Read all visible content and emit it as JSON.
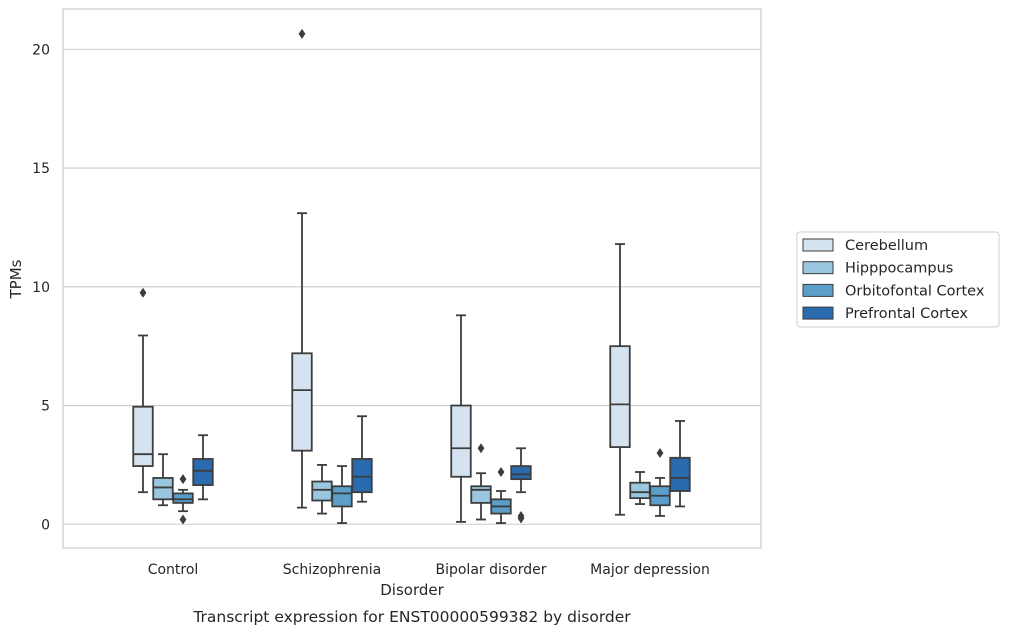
{
  "chart_data": {
    "type": "box",
    "xlabel": "Disorder",
    "ylabel": "TPMs",
    "caption": "Transcript expression for ENST00000599382 by disorder",
    "ylim": [
      -1,
      21.7
    ],
    "yticks": [
      0,
      5,
      10,
      15,
      20
    ],
    "grid": "horizontal",
    "legend_position": "right",
    "categories": [
      "Control",
      "Schizophrenia",
      "Bipolar disorder",
      "Major depression"
    ],
    "series": [
      {
        "name": "Cerebellum",
        "color": "#d5e3f0",
        "boxes": [
          {
            "whislo": 1.35,
            "q1": 2.45,
            "med": 2.95,
            "q3": 4.95,
            "whishi": 7.95,
            "fliers": [
              9.75
            ]
          },
          {
            "whislo": 0.7,
            "q1": 3.1,
            "med": 5.65,
            "q3": 7.2,
            "whishi": 13.1,
            "fliers": [
              20.65
            ]
          },
          {
            "whislo": 0.1,
            "q1": 2.0,
            "med": 3.2,
            "q3": 5.0,
            "whishi": 8.8,
            "fliers": []
          },
          {
            "whislo": 0.4,
            "q1": 3.25,
            "med": 5.05,
            "q3": 7.5,
            "whishi": 11.8,
            "fliers": []
          }
        ]
      },
      {
        "name": "Hipppocampus",
        "color": "#9ac6e0",
        "boxes": [
          {
            "whislo": 0.8,
            "q1": 1.05,
            "med": 1.55,
            "q3": 1.95,
            "whishi": 2.95,
            "fliers": []
          },
          {
            "whislo": 0.45,
            "q1": 1.0,
            "med": 1.45,
            "q3": 1.8,
            "whishi": 2.5,
            "fliers": []
          },
          {
            "whislo": 0.2,
            "q1": 0.9,
            "med": 1.45,
            "q3": 1.6,
            "whishi": 2.15,
            "fliers": [
              3.2
            ]
          },
          {
            "whislo": 0.85,
            "q1": 1.1,
            "med": 1.35,
            "q3": 1.75,
            "whishi": 2.2,
            "fliers": []
          }
        ]
      },
      {
        "name": "Orbitofontal Cortex",
        "color": "#5a9ec9",
        "boxes": [
          {
            "whislo": 0.55,
            "q1": 0.9,
            "med": 1.05,
            "q3": 1.3,
            "whishi": 1.45,
            "fliers": [
              1.9,
              0.2
            ]
          },
          {
            "whislo": 0.05,
            "q1": 0.75,
            "med": 1.3,
            "q3": 1.6,
            "whishi": 2.45,
            "fliers": []
          },
          {
            "whislo": 0.05,
            "q1": 0.45,
            "med": 0.75,
            "q3": 1.05,
            "whishi": 1.4,
            "fliers": [
              2.2
            ]
          },
          {
            "whislo": 0.35,
            "q1": 0.8,
            "med": 1.2,
            "q3": 1.6,
            "whishi": 1.95,
            "fliers": [
              3.0
            ]
          }
        ]
      },
      {
        "name": "Prefrontal Cortex",
        "color": "#2a6aae",
        "boxes": [
          {
            "whislo": 1.05,
            "q1": 1.65,
            "med": 2.25,
            "q3": 2.75,
            "whishi": 3.75,
            "fliers": []
          },
          {
            "whislo": 0.95,
            "q1": 1.35,
            "med": 2.0,
            "q3": 2.75,
            "whishi": 4.55,
            "fliers": []
          },
          {
            "whislo": 1.35,
            "q1": 1.9,
            "med": 2.1,
            "q3": 2.45,
            "whishi": 3.2,
            "fliers": [
              0.35,
              0.25
            ]
          },
          {
            "whislo": 0.75,
            "q1": 1.4,
            "med": 1.95,
            "q3": 2.8,
            "whishi": 4.35,
            "fliers": []
          }
        ]
      }
    ]
  }
}
